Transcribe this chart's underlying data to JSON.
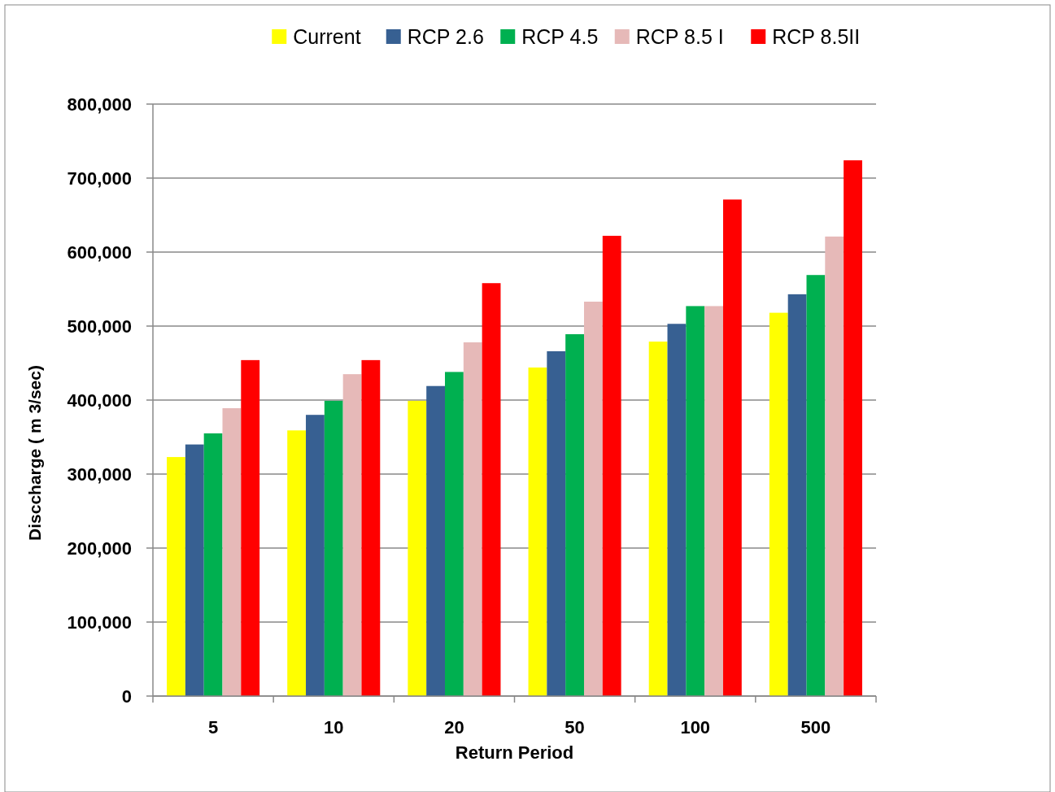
{
  "chart_data": {
    "type": "bar",
    "xlabel": "Return Period",
    "ylabel": "Disccharge ( m 3/sec)",
    "categories": [
      "5",
      "10",
      "20",
      "50",
      "100",
      "500"
    ],
    "series": [
      {
        "name": "Current",
        "color": "#ffff00",
        "values": [
          323000,
          359000,
          399000,
          444000,
          479000,
          518000
        ]
      },
      {
        "name": "RCP 2.6",
        "color": "#376092",
        "values": [
          340000,
          380000,
          419000,
          466000,
          503000,
          543000
        ]
      },
      {
        "name": "RCP 4.5",
        "color": "#00b050",
        "values": [
          355000,
          399000,
          438000,
          489000,
          527000,
          569000
        ]
      },
      {
        "name": "RCP 8.5 I",
        "color": "#e6b9b8",
        "values": [
          389000,
          435000,
          478000,
          533000,
          527000,
          621000
        ]
      },
      {
        "name": "RCP 8.5II",
        "color": "#ff0000",
        "values": [
          454000,
          454000,
          558000,
          622000,
          671000,
          724000
        ]
      }
    ],
    "ylim": [
      0,
      800000
    ],
    "yticks": [
      {
        "value": 0,
        "label": "0"
      },
      {
        "value": 100000,
        "label": "100,000"
      },
      {
        "value": 200000,
        "label": "200,000"
      },
      {
        "value": 300000,
        "label": "300,000"
      },
      {
        "value": 400000,
        "label": "400,000"
      },
      {
        "value": 500000,
        "label": "500,000"
      },
      {
        "value": 600000,
        "label": "600,000"
      },
      {
        "value": 700000,
        "label": "700,000"
      },
      {
        "value": 800000,
        "label": "800,000"
      }
    ],
    "grid": "y",
    "legend": "top"
  }
}
